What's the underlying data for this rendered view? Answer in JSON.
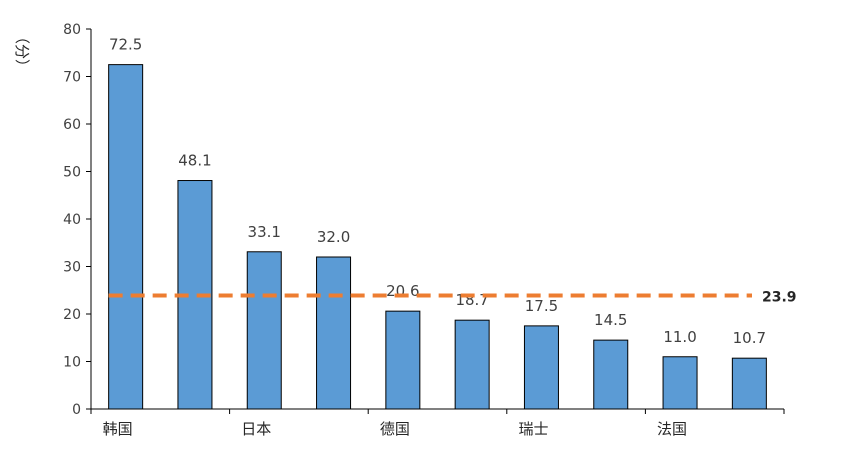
{
  "chart_data": {
    "type": "bar",
    "unit_label": "（分）",
    "categories": [
      "韩国",
      "",
      "日本",
      "",
      "德国",
      "",
      "瑞士",
      "",
      "法国",
      ""
    ],
    "values": [
      72.5,
      48.1,
      33.1,
      32.0,
      20.6,
      18.7,
      17.5,
      14.5,
      11.0,
      10.7
    ],
    "data_labels": [
      "72.5",
      "48.1",
      "33.1",
      "32.0",
      "20.6",
      "18.7",
      "17.5",
      "14.5",
      "11.0",
      "10.7"
    ],
    "ylim": [
      0,
      80
    ],
    "yticks": [
      0,
      10,
      20,
      30,
      40,
      50,
      60,
      70,
      80
    ],
    "average": {
      "value": 23.9,
      "label": "23.9",
      "style": "dashed"
    },
    "colors": {
      "bar": "#5b9bd5",
      "bar_stroke": "#000000",
      "average_line": "#ed7d31",
      "axis": "#000000"
    },
    "grid": false,
    "legend": "none"
  }
}
